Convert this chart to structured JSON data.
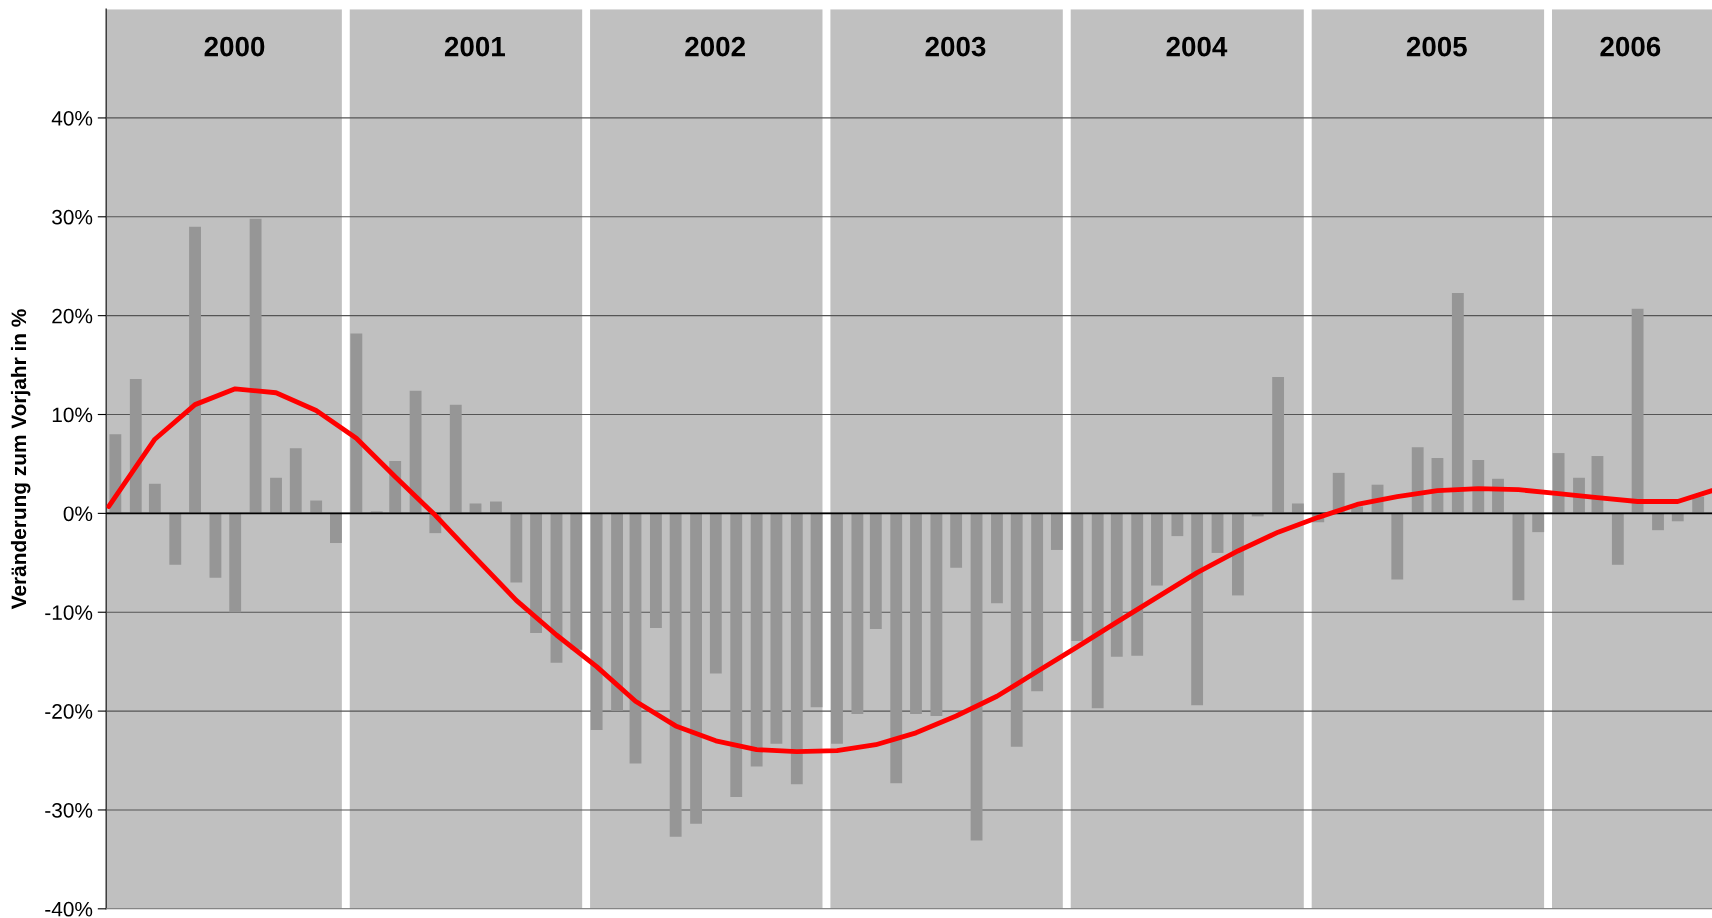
{
  "chart_data": {
    "type": "bar",
    "ylabel": "Veränderung zum Vorjahr in %",
    "x": [
      "2000-01",
      "2000-02",
      "2000-03",
      "2000-04",
      "2000-05",
      "2000-06",
      "2000-07",
      "2000-08",
      "2000-09",
      "2000-10",
      "2000-11",
      "2000-12",
      "2001-01",
      "2001-02",
      "2001-03",
      "2001-04",
      "2001-05",
      "2001-06",
      "2001-07",
      "2001-08",
      "2001-09",
      "2001-10",
      "2001-11",
      "2001-12",
      "2002-01",
      "2002-02",
      "2002-03",
      "2002-04",
      "2002-05",
      "2002-06",
      "2002-07",
      "2002-08",
      "2002-09",
      "2002-10",
      "2002-11",
      "2002-12",
      "2003-01",
      "2003-02",
      "2003-03",
      "2003-04",
      "2003-05",
      "2003-06",
      "2003-07",
      "2003-08",
      "2003-09",
      "2003-10",
      "2003-11",
      "2003-12",
      "2004-01",
      "2004-02",
      "2004-03",
      "2004-04",
      "2004-05",
      "2004-06",
      "2004-07",
      "2004-08",
      "2004-09",
      "2004-10",
      "2004-11",
      "2004-12",
      "2005-01",
      "2005-02",
      "2005-03",
      "2005-04",
      "2005-05",
      "2005-06",
      "2005-07",
      "2005-08",
      "2005-09",
      "2005-10",
      "2005-11",
      "2005-12",
      "2006-01",
      "2006-02",
      "2006-03",
      "2006-04",
      "2006-05",
      "2006-06",
      "2006-07",
      "2006-08"
    ],
    "series": [
      {
        "color": "#969696",
        "values": [
          8,
          13.6,
          3,
          -5.2,
          29,
          -6.5,
          -10,
          29.8,
          3.6,
          6.6,
          1.3,
          -3,
          18.2,
          0.2,
          5.3,
          12.4,
          -2,
          11,
          1,
          1.2,
          -7,
          -12.1,
          -15.1,
          -13.8,
          -21.9,
          -20,
          -25.3,
          -11.6,
          -32.7,
          -31.4,
          -16.2,
          -28.7,
          -25.6,
          -23.3,
          -27.4,
          -19.6,
          -23.3,
          -20.3,
          -11.7,
          -27.3,
          -20.3,
          -20.5,
          -5.5,
          -33.1,
          -9.1,
          -23.6,
          -18,
          -3.7,
          -12.9,
          -19.7,
          -14.5,
          -14.4,
          -7.3,
          -2.3,
          -19.4,
          -4,
          -8.3,
          -0.3,
          13.8,
          1,
          -0.9,
          4.1,
          0.7,
          2.9,
          -6.7,
          6.7,
          5.6,
          22.3,
          5.4,
          3.5,
          -8.8,
          -1.9,
          6.1,
          3.6,
          5.8,
          -5.2,
          20.7,
          -1.7,
          -0.8,
          1.7
        ]
      },
      {
        "type": "line",
        "color": "#ff0000",
        "x": [
          "1999-12-22",
          "2000-03",
          "2000-05",
          "2000-07",
          "2000-09",
          "2000-11",
          "2001-01",
          "2001-03",
          "2001-05",
          "2001-07",
          "2001-09",
          "2001-11",
          "2002-01",
          "2002-03",
          "2002-05",
          "2002-07",
          "2002-09",
          "2002-11",
          "2003-01",
          "2003-03",
          "2003-05",
          "2003-07",
          "2003-09",
          "2003-11",
          "2004-01",
          "2004-03",
          "2004-05",
          "2004-07",
          "2004-09",
          "2004-11",
          "2005-01",
          "2005-03",
          "2005-05",
          "2005-07",
          "2005-09",
          "2005-11",
          "2006-01",
          "2006-03",
          "2006-05",
          "2006-07",
          "2006-08-22"
        ],
        "values": [
          0.7,
          7.5,
          11,
          12.6,
          12.2,
          10.4,
          7.6,
          3.7,
          -0.2,
          -4.5,
          -8.8,
          -12.3,
          -15.5,
          -19,
          -21.5,
          -23,
          -23.9,
          -24.1,
          -24,
          -23.4,
          -22.2,
          -20.5,
          -18.5,
          -16,
          -13.5,
          -11,
          -8.5,
          -6,
          -3.8,
          -1.9,
          -0.4,
          0.9,
          1.7,
          2.3,
          2.5,
          2.4,
          2,
          1.6,
          1.2,
          1.2,
          2.3
        ]
      }
    ],
    "xlim": [
      "1999-12-18",
      "2006-08-22"
    ],
    "ylim": [
      -40,
      51
    ],
    "yticks": [
      {
        "value": -40,
        "label": "-40%"
      },
      {
        "value": -30,
        "label": "-30%"
      },
      {
        "value": -20,
        "label": "-20%"
      },
      {
        "value": -10,
        "label": "-10%"
      },
      {
        "value": 0,
        "label": "0%"
      },
      {
        "value": 10,
        "label": "10%"
      },
      {
        "value": 20,
        "label": "20%"
      },
      {
        "value": 30,
        "label": "30%"
      },
      {
        "value": 40,
        "label": "40%"
      }
    ],
    "grid": "y",
    "xticks": [
      {
        "value": "2000-06-30",
        "label": "2000"
      },
      {
        "value": "2001-06-30",
        "label": "2001"
      },
      {
        "value": "2002-06-30",
        "label": "2002"
      },
      {
        "value": "2003-06-30",
        "label": "2003"
      },
      {
        "value": "2004-06-30",
        "label": "2004"
      },
      {
        "value": "2005-06-30",
        "label": "2005"
      },
      {
        "value": "2006-04-20",
        "label": "2006"
      }
    ],
    "legend": false,
    "bands": [
      {
        "axis": "x",
        "from": "1999-12-18",
        "to": "2000-12-10",
        "color": "#c0c0c0"
      },
      {
        "axis": "x",
        "from": "2000-12-22",
        "to": "2001-12-10",
        "color": "#c0c0c0"
      },
      {
        "axis": "x",
        "from": "2001-12-22",
        "to": "2002-12-10",
        "color": "#c0c0c0"
      },
      {
        "axis": "x",
        "from": "2002-12-22",
        "to": "2003-12-10",
        "color": "#c0c0c0"
      },
      {
        "axis": "x",
        "from": "2003-12-22",
        "to": "2004-12-10",
        "color": "#c0c0c0"
      },
      {
        "axis": "x",
        "from": "2004-12-22",
        "to": "2005-12-10",
        "color": "#c0c0c0"
      },
      {
        "axis": "x",
        "from": "2005-12-22",
        "to": "2006-08-22",
        "color": "#c0c0c0"
      }
    ]
  }
}
